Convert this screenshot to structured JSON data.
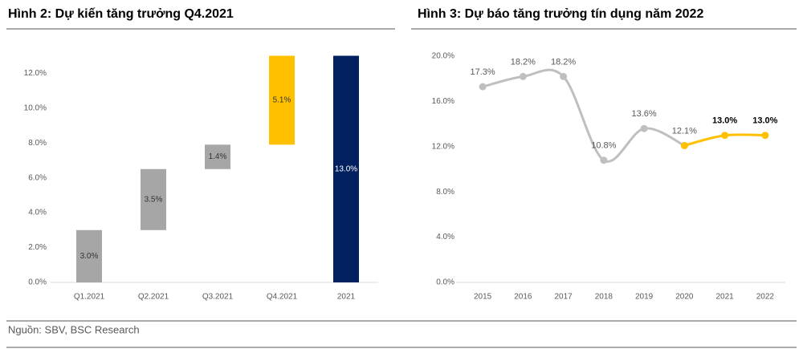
{
  "title": "Hình 2: Dự kiến tăng trưởng Q4.2021",
  "title2": "Hình 3: Dự báo tăng trưởng tín dụng năm 2022",
  "source": "Nguồn: SBV, BSC Research",
  "chart_data": [
    {
      "type": "waterfall",
      "categories": [
        "Q1.2021",
        "Q2.2021",
        "Q3.2021",
        "Q4.2021",
        "2021"
      ],
      "values": [
        3.0,
        3.5,
        1.4,
        5.1,
        13.0
      ],
      "value_labels": [
        "3.0%",
        "3.5%",
        "1.4%",
        "5.1%",
        "13.0%"
      ],
      "is_total": [
        false,
        false,
        false,
        false,
        true
      ],
      "colors": [
        "#a6a6a6",
        "#a6a6a6",
        "#a6a6a6",
        "#ffc000",
        "#002060"
      ],
      "label_colors": [
        "#333333",
        "#333333",
        "#333333",
        "#333333",
        "#ffffff"
      ],
      "ylim": [
        0,
        13
      ],
      "yticks": [
        {
          "value": 0,
          "label": "0.0%"
        },
        {
          "value": 2,
          "label": "2.0%"
        },
        {
          "value": 4,
          "label": "4.0%"
        },
        {
          "value": 6,
          "label": "6.0%"
        },
        {
          "value": 8,
          "label": "8.0%"
        },
        {
          "value": 10,
          "label": "10.0%"
        },
        {
          "value": 12,
          "label": "12.0%"
        }
      ]
    },
    {
      "type": "line",
      "categories": [
        "2015",
        "2016",
        "2017",
        "2018",
        "2019",
        "2020",
        "2021",
        "2022"
      ],
      "series": [
        {
          "color": "#bfbfbf",
          "values": [
            17.3,
            18.2,
            18.2,
            10.8,
            13.6,
            12.1,
            null,
            null
          ],
          "value_labels": [
            "17.3%",
            "18.2%",
            "18.2%",
            "10.8%",
            "13.6%",
            "12.1%",
            null,
            null
          ]
        },
        {
          "color": "#ffc000",
          "values": [
            null,
            null,
            null,
            null,
            null,
            12.1,
            13.0,
            13.0
          ],
          "value_labels": [
            null,
            null,
            null,
            null,
            null,
            null,
            "13.0%",
            "13.0%"
          ]
        }
      ],
      "ylim": [
        0,
        20
      ],
      "yticks": [
        {
          "value": 0,
          "label": "0.0%"
        },
        {
          "value": 4,
          "label": "4.0%"
        },
        {
          "value": 8,
          "label": "8.0%"
        },
        {
          "value": 12,
          "label": "12.0%"
        },
        {
          "value": 16,
          "label": "16.0%"
        },
        {
          "value": 20,
          "label": "20.0%"
        }
      ]
    }
  ]
}
